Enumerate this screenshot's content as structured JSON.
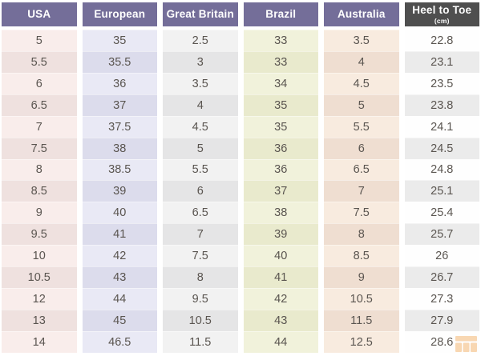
{
  "chart_data": {
    "type": "table",
    "columns": [
      {
        "label": "USA",
        "header_bg": "#746e99",
        "tint_light": "#f9edeb",
        "tint_dark": "#efe1df",
        "values": [
          "5",
          "5.5",
          "6",
          "6.5",
          "7",
          "7.5",
          "8",
          "8.5",
          "9",
          "9.5",
          "10",
          "10.5",
          "12",
          "13",
          "14"
        ]
      },
      {
        "label": "European",
        "header_bg": "#746e99",
        "tint_light": "#e9e9f5",
        "tint_dark": "#dcdcec",
        "values": [
          "35",
          "35.5",
          "36",
          "37",
          "37.5",
          "38",
          "38.5",
          "39",
          "40",
          "41",
          "42",
          "43",
          "44",
          "45",
          "46.5"
        ]
      },
      {
        "label": "Great Britain",
        "header_bg": "#746e99",
        "tint_light": "#f2f2f2",
        "tint_dark": "#e5e5e6",
        "values": [
          "2.5",
          "3",
          "3.5",
          "4",
          "4.5",
          "5",
          "5.5",
          "6",
          "6.5",
          "7",
          "7.5",
          "8",
          "9.5",
          "10.5",
          "11.5"
        ]
      },
      {
        "label": "Brazil",
        "header_bg": "#746e99",
        "tint_light": "#f1f2db",
        "tint_dark": "#e9eacd",
        "values": [
          "33",
          "33",
          "34",
          "35",
          "35",
          "36",
          "36",
          "37",
          "38",
          "39",
          "40",
          "41",
          "42",
          "43",
          "44"
        ]
      },
      {
        "label": "Australia",
        "header_bg": "#746e99",
        "tint_light": "#f8ebdf",
        "tint_dark": "#efded1",
        "values": [
          "3.5",
          "4",
          "4.5",
          "5",
          "5.5",
          "6",
          "6.5",
          "7",
          "7.5",
          "8",
          "8.5",
          "9",
          "10.5",
          "11.5",
          "12.5"
        ]
      },
      {
        "label": "Heel to Toe",
        "sublabel": "(cm)",
        "header_bg": "#4f4f4f",
        "tint_light": "#fefefe",
        "tint_dark": "#ebebeb",
        "values": [
          "22.8",
          "23.1",
          "23.5",
          "23.8",
          "24.1",
          "24.5",
          "24.8",
          "25.1",
          "25.4",
          "25.7",
          "26",
          "26.7",
          "27.3",
          "27.9",
          "28.6"
        ]
      }
    ]
  },
  "colors": {
    "header_purple": "#746e99",
    "header_dark": "#4f4f4f",
    "cell_text": "#5a5550",
    "header_text": "#ffffff"
  },
  "watermark": {
    "icon": "grid-logo-icon",
    "color": "#f0a24b"
  }
}
